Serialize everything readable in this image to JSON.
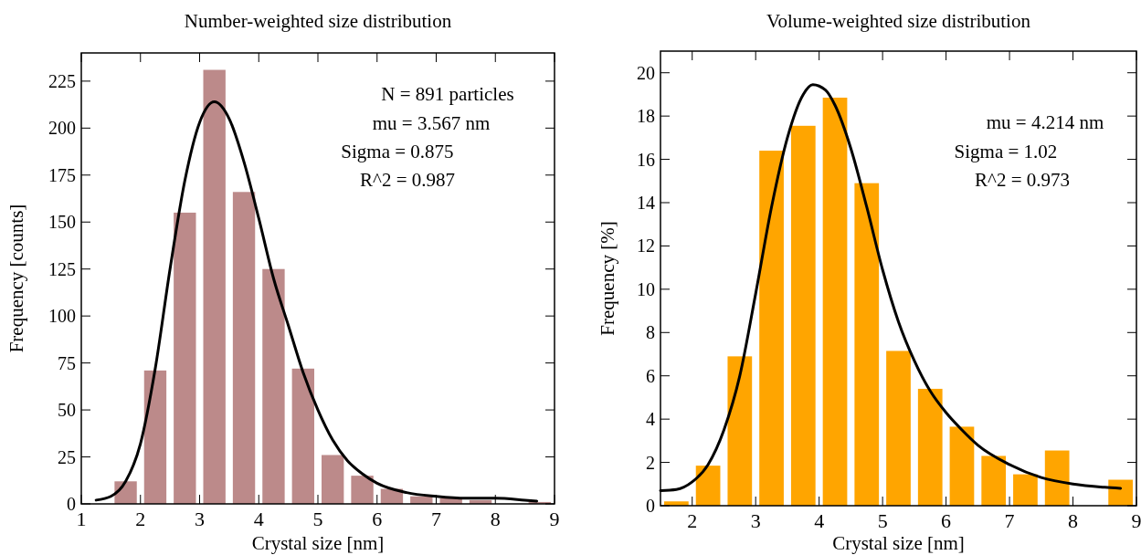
{
  "chart_data": [
    {
      "type": "histogram",
      "title": "Number-weighted size distribution",
      "xlabel": "Crystal size [nm]",
      "ylabel": "Frequency [counts]",
      "bins": [
        1.5,
        2,
        2.5,
        3,
        3.5,
        4,
        4.5,
        5,
        5.5,
        6,
        6.5,
        7,
        7.5,
        8,
        8.5,
        9
      ],
      "values": [
        12,
        71,
        155,
        231,
        166,
        125,
        72,
        26,
        15,
        8,
        4,
        3,
        2,
        0,
        1
      ],
      "color": "#bc8a8a",
      "xlim": [
        1,
        9
      ],
      "ylim": [
        0,
        240
      ],
      "xticks": [
        1,
        2,
        3,
        4,
        5,
        6,
        7,
        8,
        9
      ],
      "yticks": [
        0,
        25,
        50,
        75,
        100,
        125,
        150,
        175,
        200,
        225
      ],
      "annotations": [
        "N = 891 particles",
        "mu = 3.567 nm",
        "Sigma = 0.875",
        "R^2 = 0.987"
      ],
      "series": [
        {
          "type": "line",
          "color": "#000000",
          "x": [
            1.25,
            1.5,
            1.75,
            2,
            2.25,
            2.5,
            2.75,
            3,
            3.25,
            3.5,
            3.75,
            4,
            4.25,
            4.5,
            4.75,
            5,
            5.25,
            5.5,
            5.75,
            6,
            6.5,
            7,
            7.5,
            8,
            8.5,
            8.7
          ],
          "values": [
            2,
            4,
            12,
            32,
            72,
            125,
            172,
            203,
            214,
            205,
            182,
            152,
            120,
            95,
            70,
            50,
            34,
            23,
            16,
            11,
            6,
            4,
            3,
            3,
            2,
            1.5
          ]
        }
      ]
    },
    {
      "type": "histogram",
      "title": "Volume-weighted size distribution",
      "xlabel": "Crystal size [nm]",
      "ylabel": "Frequency [%]",
      "bins": [
        1.5,
        2,
        2.5,
        3,
        3.5,
        4,
        4.5,
        5,
        5.5,
        6,
        6.5,
        7,
        7.5,
        8,
        8.5,
        9
      ],
      "values": [
        0.2,
        1.85,
        6.9,
        16.4,
        17.55,
        18.85,
        14.9,
        7.15,
        5.4,
        3.65,
        2.3,
        1.45,
        2.55,
        0,
        1.2
      ],
      "color": "#ffa500",
      "xlim": [
        1.5,
        9
      ],
      "ylim": [
        0,
        21
      ],
      "xticks": [
        2,
        3,
        4,
        5,
        6,
        7,
        8,
        9
      ],
      "yticks": [
        0,
        2,
        4,
        6,
        8,
        10,
        12,
        14,
        16,
        18,
        20
      ],
      "annotations": [
        "mu = 4.214 nm",
        "Sigma = 1.02",
        "R^2 = 0.973"
      ],
      "series": [
        {
          "type": "line",
          "color": "#000000",
          "x": [
            1.5,
            1.75,
            2,
            2.25,
            2.5,
            2.75,
            3,
            3.25,
            3.5,
            3.75,
            3.9,
            4.1,
            4.25,
            4.5,
            4.75,
            5,
            5.25,
            5.5,
            5.75,
            6,
            6.25,
            6.5,
            7,
            7.5,
            8,
            8.5,
            8.75
          ],
          "values": [
            0.7,
            0.75,
            1.1,
            1.9,
            3.5,
            6,
            9.8,
            13.8,
            17,
            19,
            19.45,
            19.2,
            18.5,
            16.5,
            13.8,
            10.9,
            8.5,
            6.7,
            5.3,
            4.3,
            3.5,
            2.8,
            1.9,
            1.3,
            1,
            0.85,
            0.8
          ]
        }
      ]
    }
  ]
}
